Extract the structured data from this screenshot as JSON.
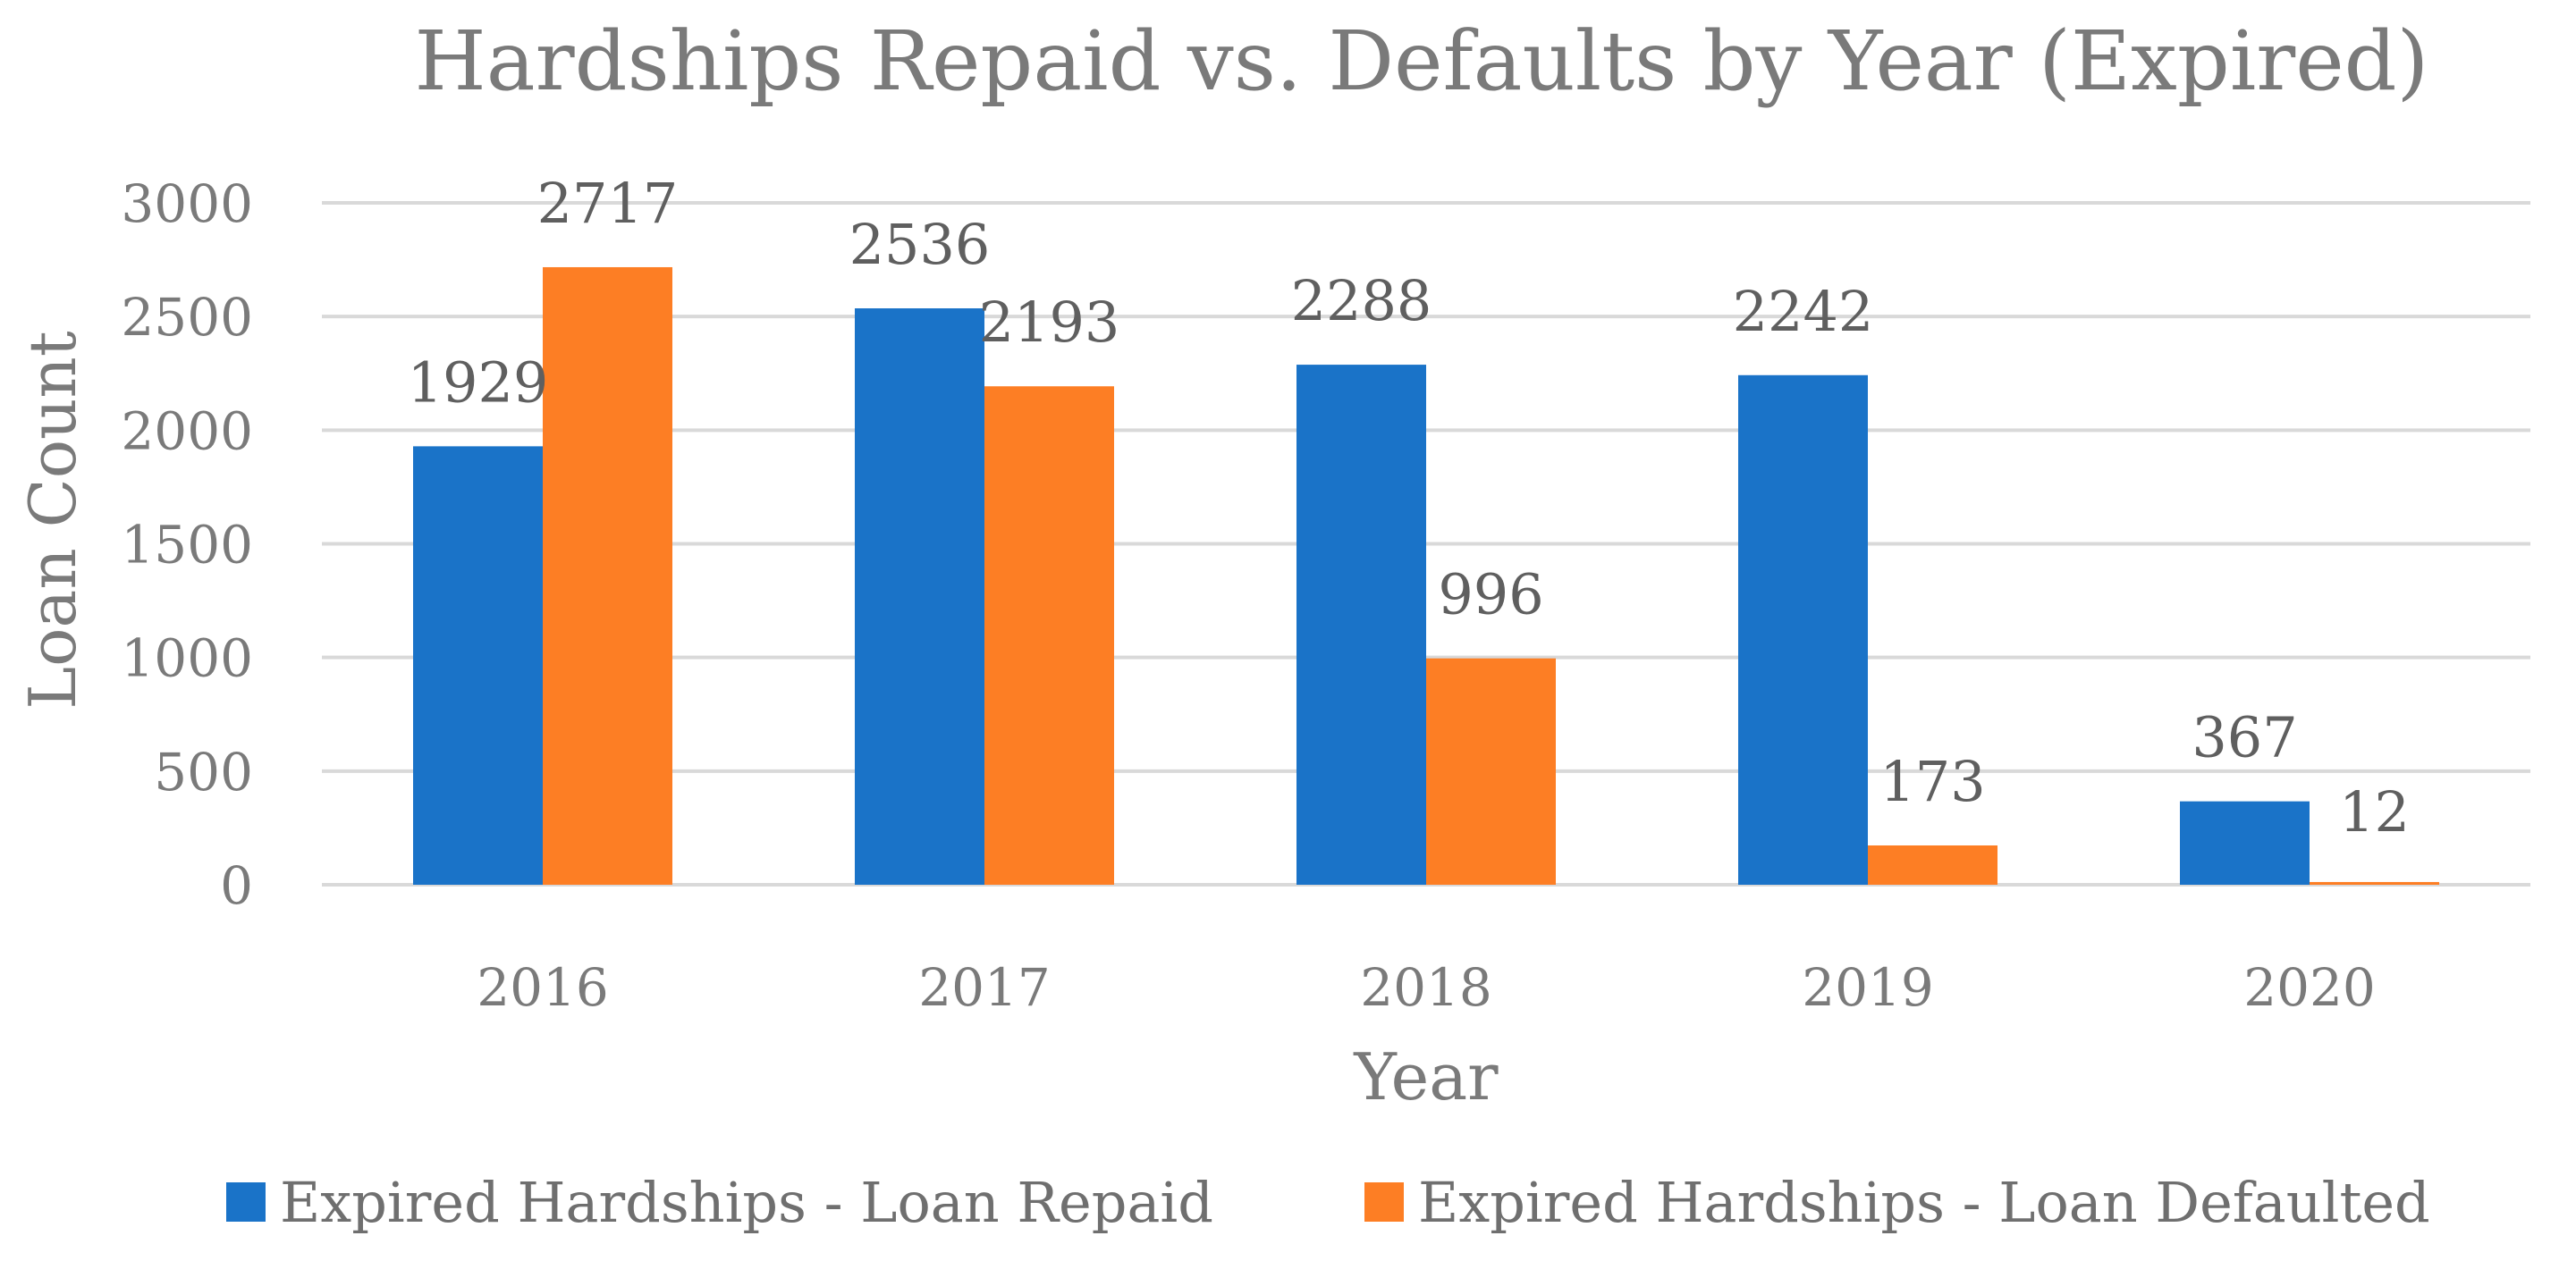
{
  "chart_data": {
    "type": "bar",
    "title": "Hardships Repaid vs. Defaults by Year (Expired)",
    "xlabel": "Year",
    "ylabel": "Loan Count",
    "categories": [
      "2016",
      "2017",
      "2018",
      "2019",
      "2020"
    ],
    "ylim": [
      0,
      3000
    ],
    "yticks": [
      0,
      500,
      1000,
      1500,
      2000,
      2500,
      3000
    ],
    "grid": true,
    "legend_position": "bottom",
    "series": [
      {
        "name": "Expired Hardships - Loan Repaid",
        "color": "#1a73c8",
        "values": [
          1929,
          2536,
          2288,
          2242,
          367
        ]
      },
      {
        "name": "Expired Hardships - Loan Defaulted",
        "color": "#fd7e24",
        "values": [
          2717,
          2193,
          996,
          173,
          12
        ]
      }
    ]
  }
}
